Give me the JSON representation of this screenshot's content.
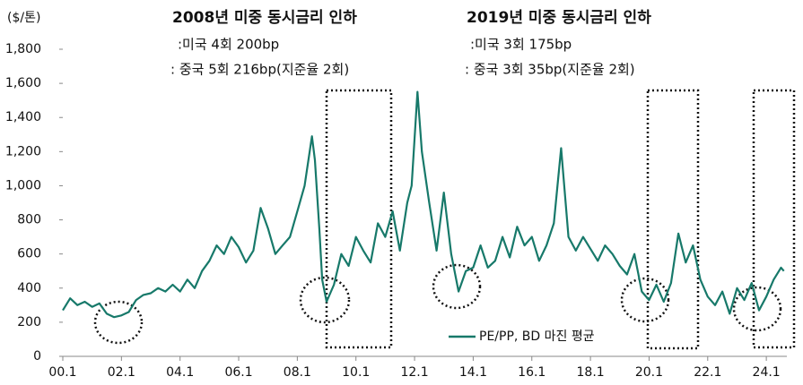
{
  "chart_data": {
    "type": "line",
    "y_axis_label": "($/톤)",
    "annotations": [
      "2008년 미중 동시금리 인하",
      ":미국 4회 200bp",
      ": 중국 5회 216bp(지준율 2회)",
      "2019년 미중 동시금리 인하",
      ":미국 3회 175bp",
      ": 중국 3회 35bp(지준율 2회)"
    ],
    "x": [
      2000.0,
      2000.25,
      2000.5,
      2000.75,
      2001.0,
      2001.25,
      2001.5,
      2001.75,
      2002.0,
      2002.25,
      2002.5,
      2002.75,
      2003.0,
      2003.25,
      2003.5,
      2003.75,
      2004.0,
      2004.25,
      2004.5,
      2004.75,
      2005.0,
      2005.25,
      2005.5,
      2005.75,
      2006.0,
      2006.25,
      2006.5,
      2006.75,
      2007.0,
      2007.25,
      2007.5,
      2007.75,
      2008.0,
      2008.25,
      2008.5,
      2008.6,
      2008.75,
      2008.85,
      2009.0,
      2009.25,
      2009.5,
      2009.75,
      2010.0,
      2010.25,
      2010.5,
      2010.75,
      2011.0,
      2011.25,
      2011.5,
      2011.75,
      2011.9,
      2012.0,
      2012.1,
      2012.25,
      2012.5,
      2012.75,
      2013.0,
      2013.25,
      2013.5,
      2013.75,
      2014.0,
      2014.25,
      2014.5,
      2014.75,
      2015.0,
      2015.25,
      2015.5,
      2015.75,
      2016.0,
      2016.25,
      2016.5,
      2016.75,
      2017.0,
      2017.25,
      2017.5,
      2017.75,
      2018.0,
      2018.25,
      2018.5,
      2018.75,
      2019.0,
      2019.25,
      2019.5,
      2019.75,
      2020.0,
      2020.25,
      2020.5,
      2020.75,
      2021.0,
      2021.25,
      2021.5,
      2021.75,
      2022.0,
      2022.25,
      2022.5,
      2022.75,
      2023.0,
      2023.25,
      2023.5,
      2023.75,
      2024.0,
      2024.25,
      2024.5,
      2024.6
    ],
    "series": [
      {
        "name": "PE/PP, BD 마진 평균",
        "color": "#17796a",
        "values": [
          270,
          340,
          300,
          320,
          290,
          310,
          250,
          230,
          240,
          260,
          330,
          360,
          370,
          400,
          380,
          420,
          380,
          450,
          400,
          500,
          560,
          650,
          600,
          700,
          640,
          550,
          620,
          870,
          750,
          600,
          650,
          700,
          850,
          1000,
          1290,
          1150,
          750,
          450,
          320,
          420,
          600,
          530,
          700,
          620,
          550,
          780,
          700,
          850,
          620,
          900,
          1000,
          1280,
          1550,
          1200,
          900,
          620,
          960,
          600,
          380,
          500,
          520,
          650,
          520,
          560,
          700,
          580,
          760,
          650,
          700,
          560,
          650,
          780,
          1220,
          700,
          620,
          700,
          630,
          560,
          650,
          600,
          530,
          480,
          600,
          380,
          330,
          420,
          320,
          430,
          720,
          550,
          650,
          450,
          350,
          300,
          380,
          250,
          400,
          330,
          430,
          270,
          350,
          450,
          520,
          500
        ]
      }
    ],
    "xlim": [
      2000,
      2024.7
    ],
    "xticks": [
      {
        "value": 2000,
        "label": "00.1"
      },
      {
        "value": 2002,
        "label": "02.1"
      },
      {
        "value": 2004,
        "label": "04.1"
      },
      {
        "value": 2006,
        "label": "06.1"
      },
      {
        "value": 2008,
        "label": "08.1"
      },
      {
        "value": 2010,
        "label": "10.1"
      },
      {
        "value": 2012,
        "label": "12.1"
      },
      {
        "value": 2014,
        "label": "14.1"
      },
      {
        "value": 2016,
        "label": "16.1"
      },
      {
        "value": 2018,
        "label": "18.1"
      },
      {
        "value": 2020,
        "label": "20.1"
      },
      {
        "value": 2022,
        "label": "22.1"
      },
      {
        "value": 2024,
        "label": "24.1"
      }
    ],
    "ylim": [
      0,
      1800
    ],
    "yticks": [
      0,
      200,
      400,
      600,
      800,
      {
        "value": 1000,
        "label": "1,000"
      },
      {
        "value": 1200,
        "label": "1,200"
      },
      {
        "value": 1400,
        "label": "1,400"
      },
      {
        "value": 1600,
        "label": "1,600"
      },
      {
        "value": 1800,
        "label": "1,800"
      }
    ],
    "legend": "lower-right"
  }
}
